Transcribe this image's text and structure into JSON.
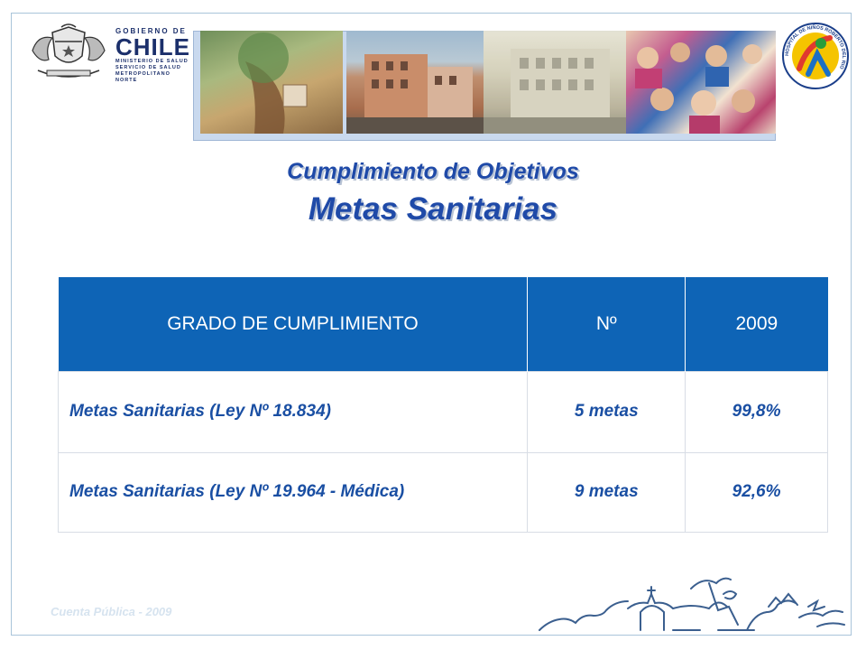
{
  "header": {
    "gov_small": "GOBIERNO DE",
    "gov_big": "CHILE",
    "gov_sub_1": "MINISTERIO DE SALUD",
    "gov_sub_2": "SERVICIO DE SALUD",
    "gov_sub_3": "METROPOLITANO NORTE",
    "hospital_ring_text": "HOSPITAL DE NIÑOS ROBERTO DEL RIO"
  },
  "titles": {
    "line1": "Cumplimiento de Objetivos",
    "line2": "Metas Sanitarias"
  },
  "table": {
    "headers": [
      "GRADO DE CUMPLIMIENTO",
      "Nº",
      "2009"
    ],
    "rows": [
      {
        "label": "Metas Sanitarias (Ley Nº 18.834)",
        "count": "5 metas",
        "value": "99,8%"
      },
      {
        "label": "Metas Sanitarias (Ley Nº 19.964 - Médica)",
        "count": "9 metas",
        "value": "92,6%"
      }
    ]
  },
  "footer": {
    "text": "Cuenta Pública - 2009"
  },
  "colors": {
    "accent": "#0e64b6",
    "title": "#1f4aa8",
    "text": "#1a4fa3"
  }
}
